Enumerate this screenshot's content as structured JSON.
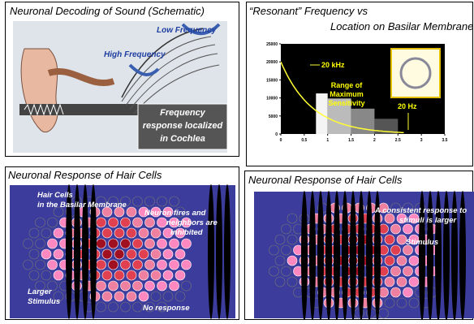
{
  "panels": [
    {
      "title": "Neuronal Decoding of Sound (Schematic)",
      "labels": [
        "Low Frequency",
        "High Frequency"
      ],
      "box": [
        "Frequency",
        "response localized",
        "in Cochlea"
      ]
    },
    {
      "title": [
        "“Resonant” Frequency vs",
        "Location on Basilar Membrane"
      ],
      "yticks": [
        0,
        5000,
        10000,
        15000,
        20000,
        25000
      ],
      "xticks": [
        0,
        0.5,
        1,
        1.5,
        2,
        2.5,
        3,
        3.5
      ],
      "labels": [
        "20 kHz",
        "Range of",
        "Maximum",
        "Sensitivity",
        "20 Hz"
      ]
    },
    {
      "title": "Neuronal Response of Hair Cells",
      "labels": [
        "Hair Cells",
        "in the Basilar Membrane",
        "Neuron fires and",
        "neighbors are",
        "inhibited",
        "Larger",
        "Stimulus",
        "No response"
      ]
    },
    {
      "title": "Neuronal Response of Hair Cells",
      "labels": [
        "A consistent response to",
        "stimuli is larger",
        "Stimulus"
      ]
    }
  ]
}
